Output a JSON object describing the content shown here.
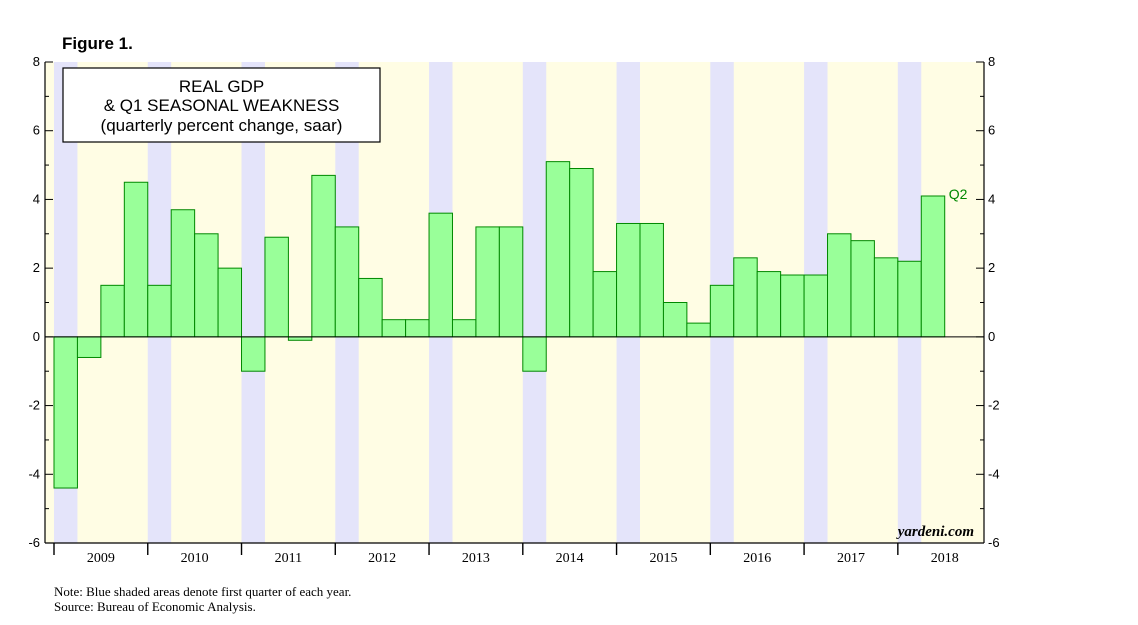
{
  "figure_label": "Figure 1.",
  "chart_data": {
    "type": "bar",
    "title_lines": [
      "REAL GDP",
      "& Q1 SEASONAL WEAKNESS",
      "(quarterly percent change, saar)"
    ],
    "quarters": [
      "2009Q1",
      "2009Q2",
      "2009Q3",
      "2009Q4",
      "2010Q1",
      "2010Q2",
      "2010Q3",
      "2010Q4",
      "2011Q1",
      "2011Q2",
      "2011Q3",
      "2011Q4",
      "2012Q1",
      "2012Q2",
      "2012Q3",
      "2012Q4",
      "2013Q1",
      "2013Q2",
      "2013Q3",
      "2013Q4",
      "2014Q1",
      "2014Q2",
      "2014Q3",
      "2014Q4",
      "2015Q1",
      "2015Q2",
      "2015Q3",
      "2015Q4",
      "2016Q1",
      "2016Q2",
      "2016Q3",
      "2016Q4",
      "2017Q1",
      "2017Q2",
      "2017Q3",
      "2017Q4",
      "2018Q1",
      "2018Q2"
    ],
    "values": [
      -4.4,
      -0.6,
      1.5,
      4.5,
      1.5,
      3.7,
      3.0,
      2.0,
      -1.0,
      2.9,
      -0.1,
      4.7,
      3.2,
      1.7,
      0.5,
      0.5,
      3.6,
      0.5,
      3.2,
      3.2,
      -1.0,
      5.1,
      4.9,
      1.9,
      3.3,
      3.3,
      1.0,
      0.4,
      1.5,
      2.3,
      1.9,
      1.8,
      1.8,
      3.0,
      2.8,
      2.3,
      2.2,
      4.1
    ],
    "years": [
      "2009",
      "2010",
      "2011",
      "2012",
      "2013",
      "2014",
      "2015",
      "2016",
      "2017",
      "2018"
    ],
    "y_ticks": [
      8,
      6,
      4,
      2,
      0,
      -2,
      -4,
      -6
    ],
    "ylim": [
      -6,
      8
    ],
    "last_label": "Q2",
    "watermark": "yardeni.com",
    "shading": "first quarter of each year",
    "colors": {
      "bar": "#99ff99",
      "bar_edge": "#008800",
      "q1_shade": "#e4e4fa",
      "background": "#fffde4",
      "label": "#008800"
    }
  },
  "notes": {
    "note": "Note: Blue shaded areas denote first quarter of each year.",
    "source": "Source: Bureau of Economic Analysis."
  }
}
